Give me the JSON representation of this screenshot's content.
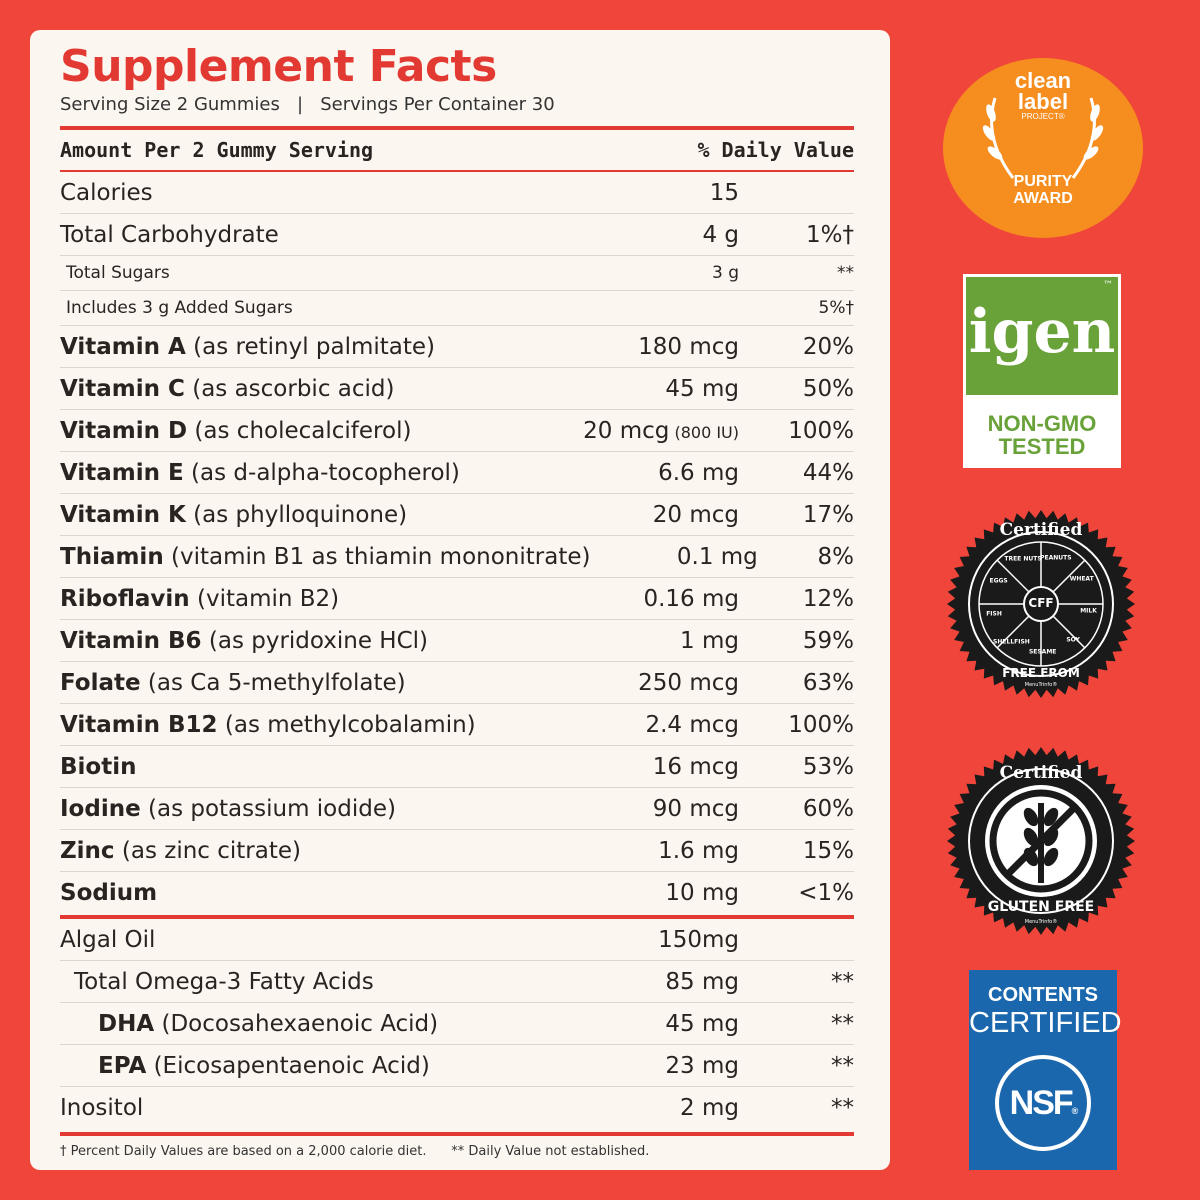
{
  "facts": {
    "title": "Supplement Facts",
    "serving_line": "Serving Size 2 Gummies   |   Servings Per Container 30",
    "header_amount": "Amount Per 2 Gummy Serving",
    "header_dv": "% Daily Value",
    "rows": [
      {
        "name": "Calories",
        "desc": "",
        "amt": "15",
        "iu": "",
        "dv": ""
      },
      {
        "name": "Total Carbohydrate",
        "desc": "",
        "amt": "4 g",
        "iu": "",
        "dv": "1%†"
      },
      {
        "name": "Total Sugars",
        "desc": "",
        "amt": "3 g",
        "iu": "",
        "dv": "**"
      },
      {
        "name": "Includes 3 g Added Sugars",
        "desc": "",
        "amt": "",
        "iu": "",
        "dv": "5%†"
      },
      {
        "name": "Vitamin A",
        "desc": " (as retinyl palmitate)",
        "amt": "180 mcg",
        "iu": "",
        "dv": "20%"
      },
      {
        "name": "Vitamin C",
        "desc": " (as ascorbic acid)",
        "amt": "45 mg",
        "iu": "",
        "dv": "50%"
      },
      {
        "name": "Vitamin D",
        "desc": " (as cholecalciferol)",
        "amt": "20 mcg",
        "iu": " (800 IU)",
        "dv": "100%"
      },
      {
        "name": "Vitamin E",
        "desc": " (as d-alpha-tocopherol)",
        "amt": "6.6 mg",
        "iu": "",
        "dv": "44%"
      },
      {
        "name": "Vitamin K",
        "desc": " (as phylloquinone)",
        "amt": "20 mcg",
        "iu": "",
        "dv": "17%"
      },
      {
        "name": "Thiamin",
        "desc": " (vitamin B1 as thiamin mononitrate)",
        "amt": "0.1 mg",
        "iu": "",
        "dv": "8%"
      },
      {
        "name": "Riboflavin",
        "desc": " (vitamin B2)",
        "amt": "0.16 mg",
        "iu": "",
        "dv": "12%"
      },
      {
        "name": "Vitamin B6",
        "desc": " (as pyridoxine HCl)",
        "amt": "1 mg",
        "iu": "",
        "dv": "59%"
      },
      {
        "name": "Folate",
        "desc": " (as Ca 5-methylfolate)",
        "amt": "250 mcg",
        "iu": "",
        "dv": "63%"
      },
      {
        "name": "Vitamin B12",
        "desc": " (as methylcobalamin)",
        "amt": "2.4 mcg",
        "iu": "",
        "dv": "100%"
      },
      {
        "name": "Biotin",
        "desc": "",
        "amt": "16 mcg",
        "iu": "",
        "dv": "53%"
      },
      {
        "name": "Iodine",
        "desc": " (as potassium iodide)",
        "amt": "90 mcg",
        "iu": "",
        "dv": "60%"
      },
      {
        "name": "Zinc",
        "desc": " (as zinc citrate)",
        "amt": "1.6 mg",
        "iu": "",
        "dv": "15%"
      },
      {
        "name": "Sodium",
        "desc": "",
        "amt": "10 mg",
        "iu": "",
        "dv": "<1%"
      },
      {
        "name": "Algal Oil",
        "desc": "",
        "amt": "150mg",
        "iu": "",
        "dv": ""
      },
      {
        "name": "Total Omega-3 Fatty Acids",
        "desc": "",
        "amt": "85 mg",
        "iu": "",
        "dv": "**"
      },
      {
        "name": "DHA",
        "desc": " (Docosahexaenoic Acid)",
        "amt": "45 mg",
        "iu": "",
        "dv": "**"
      },
      {
        "name": "EPA",
        "desc": " (Eicosapentaenoic Acid)",
        "amt": "23 mg",
        "iu": "",
        "dv": "**"
      },
      {
        "name": "Inositol",
        "desc": "",
        "amt": "2 mg",
        "iu": "",
        "dv": "**"
      }
    ],
    "footnote": "† Percent Daily Values are based on a 2,000 calorie diet.      ** Daily Value not established."
  },
  "badges": {
    "clean_label": {
      "line1": "clean",
      "line2": "label",
      "line3": "PROJECT®",
      "line4": "PURITY",
      "line5": "AWARD",
      "color": "#f68d1f"
    },
    "igen": {
      "logo": "igen",
      "tm": "™",
      "line1": "NON-GMO",
      "line2": "TESTED",
      "color": "#6aa23a"
    },
    "cff": {
      "top": "Certified",
      "center": "CFF",
      "bottom": "FREE FROM",
      "small": "MenuTrinfo®",
      "allergens": [
        "TREE NUTS",
        "PEANUTS",
        "WHEAT",
        "MILK",
        "SOY",
        "SESAME",
        "SHELLFISH",
        "FISH",
        "EGGS"
      ]
    },
    "gluten": {
      "top": "Certified",
      "bottom": "GLUTEN FREE",
      "small": "MenuTrinfo®"
    },
    "nsf": {
      "line1": "CONTENTS",
      "line2": "CERTIFIED",
      "logo": "NSF",
      "reg": "®",
      "color": "#1b67ae"
    }
  }
}
